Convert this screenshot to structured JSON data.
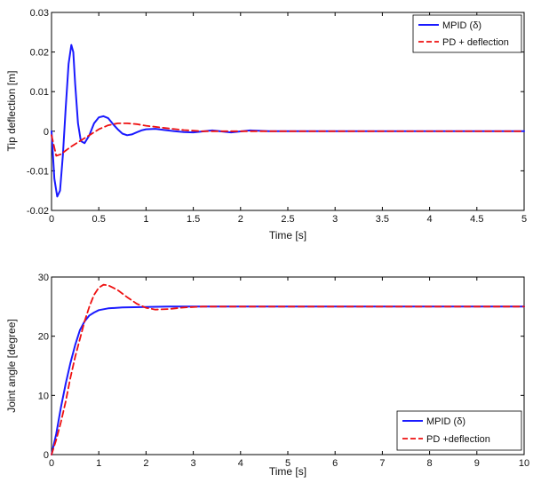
{
  "chart_data": [
    {
      "type": "line",
      "xlabel": "Time [s]",
      "ylabel": "Tip deflection [m]",
      "xlim": [
        0,
        5
      ],
      "ylim": [
        -0.02,
        0.03
      ],
      "xticks": [
        0,
        0.5,
        1,
        1.5,
        2,
        2.5,
        3,
        3.5,
        4,
        4.5,
        5
      ],
      "xtick_labels": [
        "0",
        "0.5",
        "1",
        "1.5",
        "2",
        "2.5",
        "3",
        "3.5",
        "4",
        "4.5",
        "5"
      ],
      "yticks": [
        -0.02,
        -0.01,
        0,
        0.01,
        0.02,
        0.03
      ],
      "ytick_labels": [
        "-0.02",
        "-0.01",
        "0",
        "0.01",
        "0.02",
        "0.03"
      ],
      "grid": false,
      "legend_position": "top-right",
      "series": [
        {
          "name": "MPID (δ)",
          "color": "#1a1aff",
          "style": "solid",
          "x": [
            0,
            0.03,
            0.06,
            0.09,
            0.12,
            0.15,
            0.18,
            0.21,
            0.23,
            0.25,
            0.28,
            0.31,
            0.35,
            0.4,
            0.45,
            0.5,
            0.55,
            0.6,
            0.65,
            0.7,
            0.75,
            0.8,
            0.85,
            0.9,
            0.95,
            1.0,
            1.1,
            1.2,
            1.3,
            1.4,
            1.5,
            1.7,
            1.9,
            2.1,
            2.3,
            2.5,
            3.0,
            4.0,
            5.0
          ],
          "y": [
            0,
            -0.012,
            -0.0165,
            -0.015,
            -0.006,
            0.006,
            0.017,
            0.0218,
            0.02,
            0.012,
            0.002,
            -0.0025,
            -0.003,
            -0.001,
            0.002,
            0.0035,
            0.0038,
            0.0033,
            0.0018,
            0.0005,
            -0.0006,
            -0.001,
            -0.0008,
            -0.0003,
            0.0002,
            0.0005,
            0.0006,
            0.0003,
            0.0,
            -0.0002,
            -0.0003,
            0.0002,
            -0.0003,
            0.0002,
            0.0,
            0.0,
            0.0,
            0.0,
            0.0
          ]
        },
        {
          "name": "PD + deflection",
          "color": "#ee1111",
          "style": "dashed",
          "x": [
            0,
            0.05,
            0.1,
            0.2,
            0.3,
            0.4,
            0.5,
            0.6,
            0.7,
            0.8,
            0.9,
            1.0,
            1.2,
            1.4,
            1.6,
            2.0,
            2.5,
            3.0,
            5.0
          ],
          "y": [
            -0.001,
            -0.0062,
            -0.0058,
            -0.004,
            -0.0025,
            -0.001,
            0.0005,
            0.0015,
            0.002,
            0.002,
            0.0018,
            0.0014,
            0.0008,
            0.0003,
            0.0,
            0.0,
            0.0,
            0.0,
            0.0
          ]
        }
      ]
    },
    {
      "type": "line",
      "xlabel": "Time [s]",
      "ylabel": "Joint angle [degree]",
      "xlim": [
        0,
        10
      ],
      "ylim": [
        0,
        30
      ],
      "xticks": [
        0,
        1,
        2,
        3,
        4,
        5,
        6,
        7,
        8,
        9,
        10
      ],
      "xtick_labels": [
        "0",
        "1",
        "2",
        "3",
        "4",
        "5",
        "6",
        "7",
        "8",
        "9",
        "10"
      ],
      "yticks": [
        0,
        10,
        20,
        30
      ],
      "ytick_labels": [
        "0",
        "10",
        "20",
        "30"
      ],
      "grid": false,
      "legend_position": "bottom-right",
      "series": [
        {
          "name": "MPID (δ)",
          "color": "#1a1aff",
          "style": "solid",
          "x": [
            0,
            0.1,
            0.2,
            0.3,
            0.4,
            0.5,
            0.6,
            0.7,
            0.8,
            0.9,
            1.0,
            1.2,
            1.5,
            2.0,
            2.5,
            3.0,
            4.0,
            5.0,
            10.0
          ],
          "y": [
            0,
            3.5,
            8,
            12,
            15.5,
            18.5,
            21,
            22.5,
            23.5,
            24.0,
            24.4,
            24.7,
            24.85,
            24.95,
            25,
            25,
            25,
            25,
            25
          ]
        },
        {
          "name": "PD +deflection",
          "color": "#ee1111",
          "style": "dashed",
          "x": [
            0,
            0.1,
            0.2,
            0.3,
            0.4,
            0.5,
            0.6,
            0.7,
            0.8,
            0.9,
            1.0,
            1.1,
            1.2,
            1.4,
            1.6,
            1.8,
            2.0,
            2.2,
            2.5,
            2.8,
            3.2,
            3.5,
            4.0,
            5.0,
            10.0
          ],
          "y": [
            0,
            2.5,
            5.5,
            9,
            13,
            16.5,
            19.5,
            22.5,
            25.0,
            27.0,
            28.2,
            28.7,
            28.6,
            27.8,
            26.6,
            25.5,
            24.8,
            24.5,
            24.6,
            24.85,
            25.0,
            25.0,
            25.0,
            25.0,
            25.0
          ]
        }
      ]
    }
  ]
}
